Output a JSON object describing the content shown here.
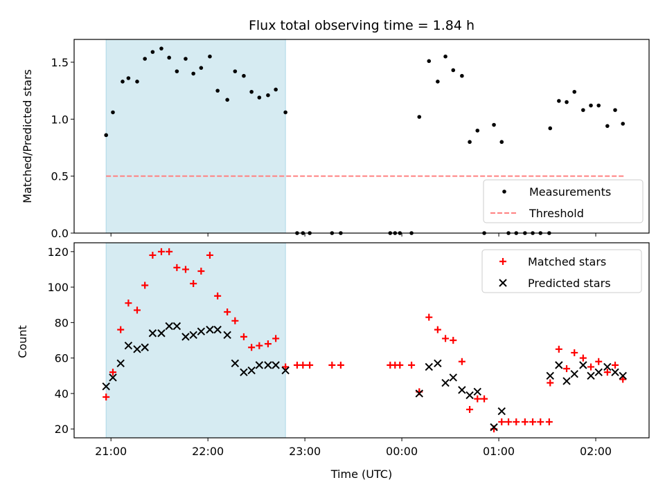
{
  "chart_data": [
    {
      "type": "scatter",
      "title": "Flux total observing time = 1.84 h",
      "xlabel": "",
      "ylabel": "Matched/Predicted stars",
      "ylim": [
        0,
        1.7
      ],
      "yticks": [
        "0.0",
        "0.5",
        "1.0",
        "1.5"
      ],
      "ytick_values": [
        0,
        0.5,
        1.0,
        1.5
      ],
      "xlim_hours": [
        20.62,
        26.55
      ],
      "shaded_span_hours": [
        20.95,
        22.8
      ],
      "shade_color": "#add8e6",
      "legend_position": "lower right",
      "legend": [
        "Measurements",
        "Threshold"
      ],
      "series": [
        {
          "name": "Measurements",
          "marker": "dot",
          "color": "#000000",
          "points": [
            [
              20.95,
              0.86
            ],
            [
              21.02,
              1.06
            ],
            [
              21.12,
              1.33
            ],
            [
              21.18,
              1.36
            ],
            [
              21.27,
              1.33
            ],
            [
              21.35,
              1.53
            ],
            [
              21.43,
              1.59
            ],
            [
              21.52,
              1.62
            ],
            [
              21.6,
              1.54
            ],
            [
              21.68,
              1.42
            ],
            [
              21.77,
              1.53
            ],
            [
              21.85,
              1.4
            ],
            [
              21.93,
              1.45
            ],
            [
              22.02,
              1.55
            ],
            [
              22.1,
              1.25
            ],
            [
              22.2,
              1.17
            ],
            [
              22.28,
              1.42
            ],
            [
              22.37,
              1.38
            ],
            [
              22.45,
              1.24
            ],
            [
              22.53,
              1.19
            ],
            [
              22.62,
              1.21
            ],
            [
              22.7,
              1.26
            ],
            [
              22.8,
              1.06
            ],
            [
              22.92,
              0
            ],
            [
              22.98,
              0
            ],
            [
              23.05,
              0
            ],
            [
              23.28,
              0
            ],
            [
              23.37,
              0
            ],
            [
              23.88,
              0
            ],
            [
              23.93,
              0
            ],
            [
              23.98,
              0
            ],
            [
              24.1,
              0
            ],
            [
              24.18,
              1.02
            ],
            [
              24.28,
              1.51
            ],
            [
              24.37,
              1.33
            ],
            [
              24.45,
              1.55
            ],
            [
              24.53,
              1.43
            ],
            [
              24.62,
              1.38
            ],
            [
              24.7,
              0.8
            ],
            [
              24.78,
              0.9
            ],
            [
              24.85,
              0
            ],
            [
              24.95,
              0.95
            ],
            [
              25.03,
              0.8
            ],
            [
              25.1,
              0
            ],
            [
              25.18,
              0
            ],
            [
              25.27,
              0
            ],
            [
              25.35,
              0
            ],
            [
              25.43,
              0
            ],
            [
              25.52,
              0
            ],
            [
              25.53,
              0.92
            ],
            [
              25.62,
              1.16
            ],
            [
              25.7,
              1.15
            ],
            [
              25.78,
              1.24
            ],
            [
              25.87,
              1.08
            ],
            [
              25.95,
              1.12
            ],
            [
              26.03,
              1.12
            ],
            [
              26.12,
              0.94
            ],
            [
              26.2,
              1.08
            ],
            [
              26.28,
              0.96
            ]
          ]
        },
        {
          "name": "Threshold",
          "style": "dashed",
          "color": "#ff8080",
          "x_range_hours": [
            20.95,
            26.3
          ],
          "value": 0.5
        }
      ]
    },
    {
      "type": "scatter",
      "title": "",
      "xlabel": "Time (UTC)",
      "ylabel": "Count",
      "ylim": [
        15,
        125
      ],
      "yticks": [
        "20",
        "40",
        "60",
        "80",
        "100",
        "120"
      ],
      "ytick_values": [
        20,
        40,
        60,
        80,
        100,
        120
      ],
      "xticks": [
        "21:00",
        "22:00",
        "23:00",
        "00:00",
        "01:00",
        "02:00"
      ],
      "xtick_hours": [
        21,
        22,
        23,
        24,
        25,
        26
      ],
      "xlim_hours": [
        20.62,
        26.55
      ],
      "shaded_span_hours": [
        20.95,
        22.8
      ],
      "shade_color": "#add8e6",
      "legend_position": "upper right",
      "legend": [
        "Matched stars",
        "Predicted stars"
      ],
      "series": [
        {
          "name": "Matched stars",
          "marker": "plus",
          "color": "#ff0000",
          "points": [
            [
              20.95,
              38
            ],
            [
              21.02,
              52
            ],
            [
              21.1,
              76
            ],
            [
              21.18,
              91
            ],
            [
              21.27,
              87
            ],
            [
              21.35,
              101
            ],
            [
              21.43,
              118
            ],
            [
              21.52,
              120
            ],
            [
              21.6,
              120
            ],
            [
              21.68,
              111
            ],
            [
              21.77,
              110
            ],
            [
              21.85,
              102
            ],
            [
              21.93,
              109
            ],
            [
              22.02,
              118
            ],
            [
              22.1,
              95
            ],
            [
              22.2,
              86
            ],
            [
              22.28,
              81
            ],
            [
              22.37,
              72
            ],
            [
              22.45,
              66
            ],
            [
              22.53,
              67
            ],
            [
              22.62,
              68
            ],
            [
              22.7,
              71
            ],
            [
              22.8,
              55
            ],
            [
              22.92,
              56
            ],
            [
              22.98,
              56
            ],
            [
              23.05,
              56
            ],
            [
              23.28,
              56
            ],
            [
              23.37,
              56
            ],
            [
              23.88,
              56
            ],
            [
              23.93,
              56
            ],
            [
              23.98,
              56
            ],
            [
              24.1,
              56
            ],
            [
              24.18,
              41
            ],
            [
              24.28,
              83
            ],
            [
              24.37,
              76
            ],
            [
              24.45,
              71
            ],
            [
              24.53,
              70
            ],
            [
              24.62,
              58
            ],
            [
              24.7,
              31
            ],
            [
              24.78,
              37
            ],
            [
              24.85,
              37
            ],
            [
              24.95,
              20
            ],
            [
              25.03,
              24
            ],
            [
              25.1,
              24
            ],
            [
              25.18,
              24
            ],
            [
              25.27,
              24
            ],
            [
              25.35,
              24
            ],
            [
              25.43,
              24
            ],
            [
              25.52,
              24
            ],
            [
              25.53,
              46
            ],
            [
              25.62,
              65
            ],
            [
              25.7,
              54
            ],
            [
              25.78,
              63
            ],
            [
              25.87,
              60
            ],
            [
              25.95,
              55
            ],
            [
              26.03,
              58
            ],
            [
              26.12,
              52
            ],
            [
              26.2,
              56
            ],
            [
              26.28,
              48
            ]
          ]
        },
        {
          "name": "Predicted stars",
          "marker": "x",
          "color": "#000000",
          "points": [
            [
              20.95,
              44
            ],
            [
              21.02,
              49
            ],
            [
              21.1,
              57
            ],
            [
              21.18,
              67
            ],
            [
              21.27,
              65
            ],
            [
              21.35,
              66
            ],
            [
              21.43,
              74
            ],
            [
              21.52,
              74
            ],
            [
              21.6,
              78
            ],
            [
              21.68,
              78
            ],
            [
              21.77,
              72
            ],
            [
              21.85,
              73
            ],
            [
              21.93,
              75
            ],
            [
              22.02,
              76
            ],
            [
              22.1,
              76
            ],
            [
              22.2,
              73
            ],
            [
              22.28,
              57
            ],
            [
              22.37,
              52
            ],
            [
              22.45,
              53
            ],
            [
              22.53,
              56
            ],
            [
              22.62,
              56
            ],
            [
              22.7,
              56
            ],
            [
              22.8,
              53
            ],
            [
              24.18,
              40
            ],
            [
              24.28,
              55
            ],
            [
              24.37,
              57
            ],
            [
              24.45,
              46
            ],
            [
              24.53,
              49
            ],
            [
              24.62,
              42
            ],
            [
              24.7,
              39
            ],
            [
              24.78,
              41
            ],
            [
              24.95,
              21
            ],
            [
              25.03,
              30
            ],
            [
              25.53,
              50
            ],
            [
              25.62,
              56
            ],
            [
              25.7,
              47
            ],
            [
              25.78,
              51
            ],
            [
              25.87,
              56
            ],
            [
              25.95,
              50
            ],
            [
              26.03,
              52
            ],
            [
              26.12,
              55
            ],
            [
              26.2,
              52
            ],
            [
              26.28,
              50
            ]
          ]
        }
      ]
    }
  ]
}
